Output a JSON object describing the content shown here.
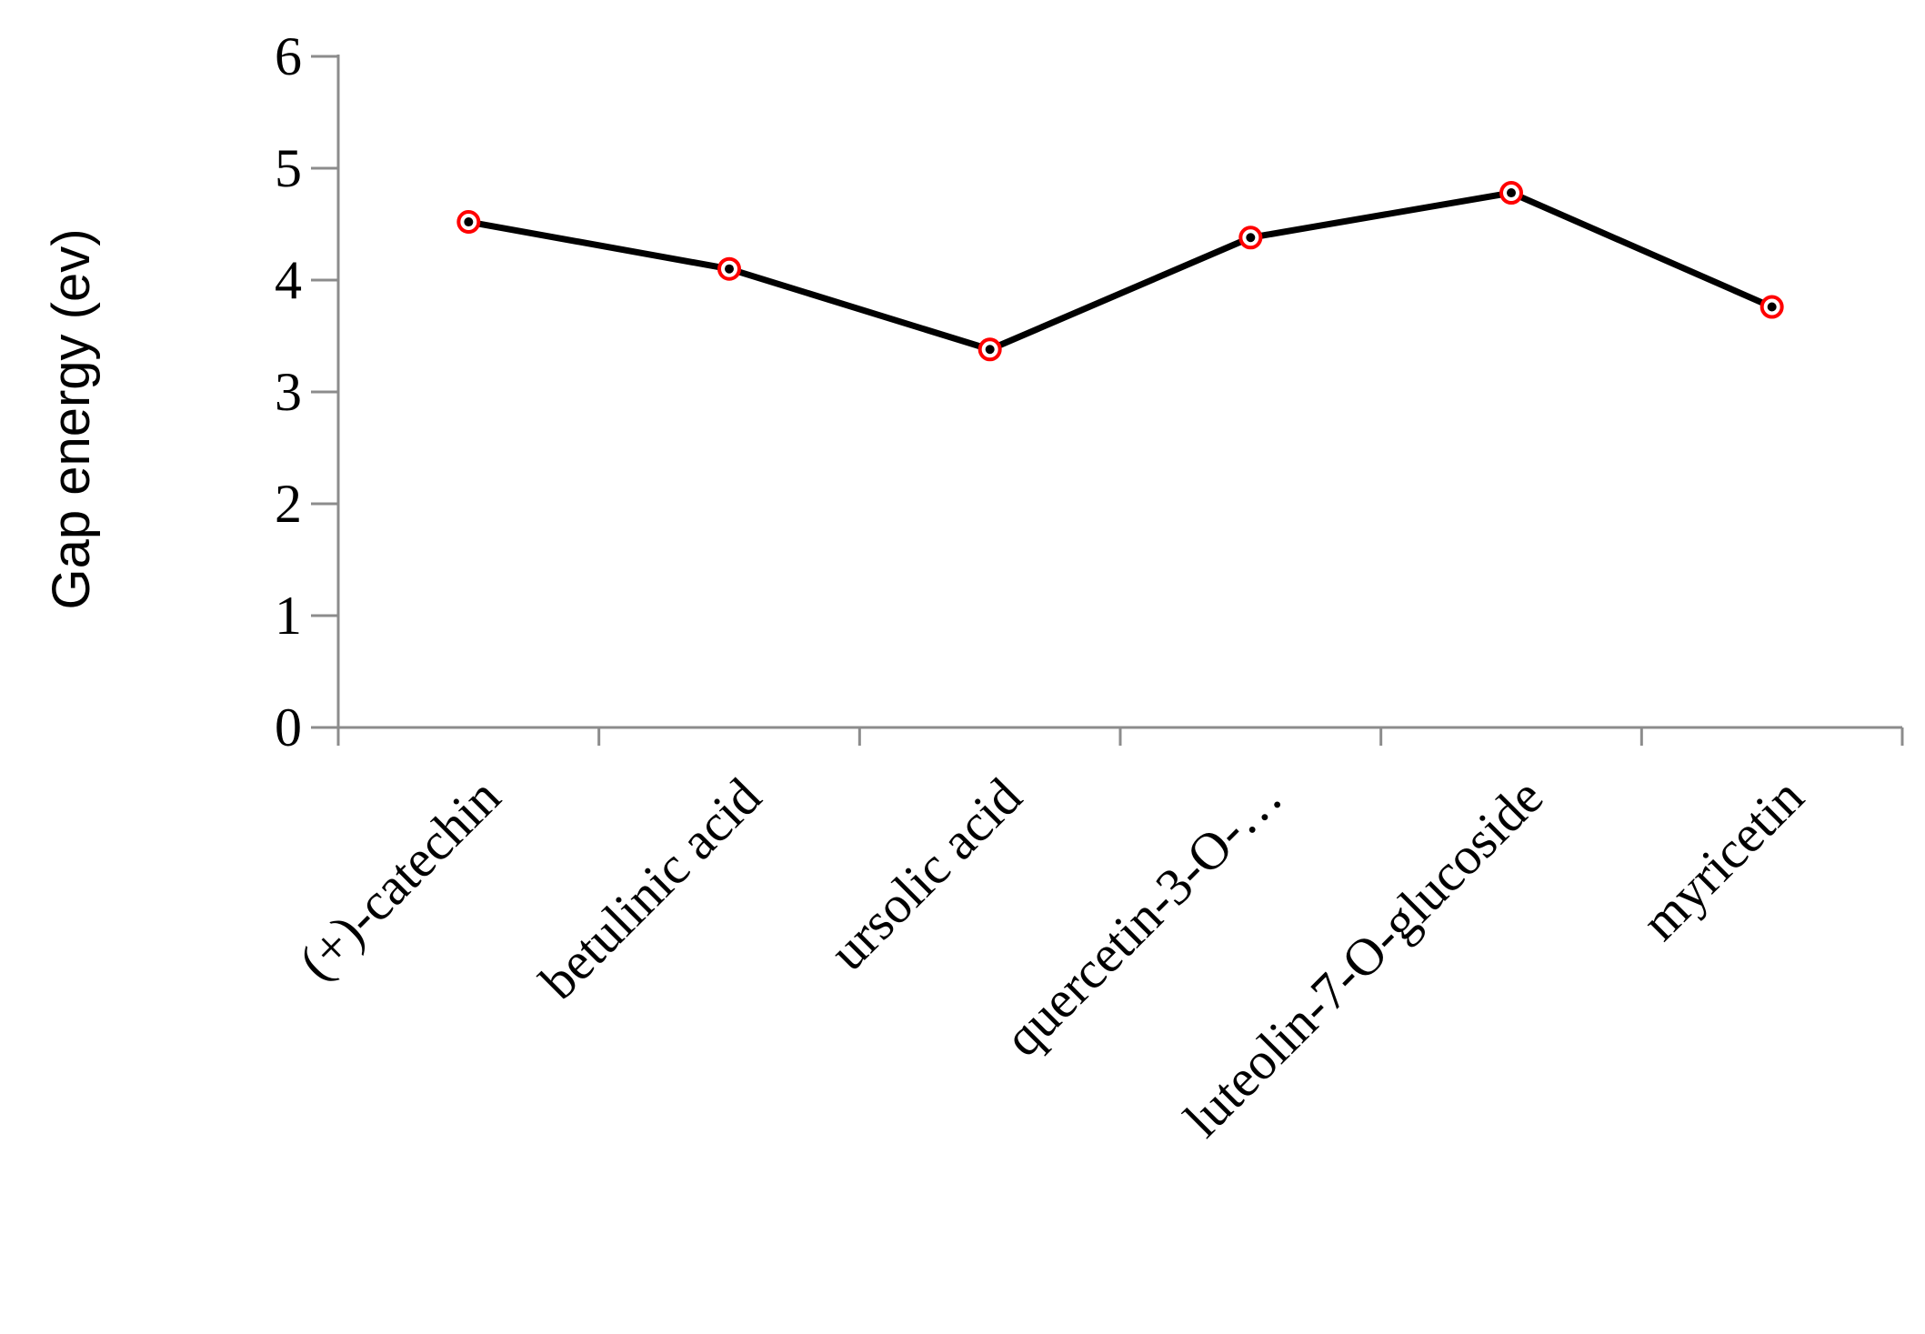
{
  "chart_data": {
    "type": "line",
    "categories": [
      "(+)-catechin",
      "betulinic acid",
      "ursolic acid",
      "quercetin-3-O-…",
      "luteolin-7-O-glucoside",
      "myricetin"
    ],
    "series": [
      {
        "values": [
          4.52,
          4.1,
          3.38,
          4.38,
          4.78,
          3.76
        ]
      }
    ],
    "ylabel": "Gap energy (ev)",
    "xlabel": "",
    "ylim": [
      0,
      6
    ],
    "yticks": [
      "0",
      "1",
      "2",
      "3",
      "4",
      "5",
      "6"
    ],
    "grid": false,
    "legend": "none",
    "colors": {
      "line": "#000000",
      "marker_edge": "#ff0000",
      "axis": "#8c8c8c"
    }
  }
}
